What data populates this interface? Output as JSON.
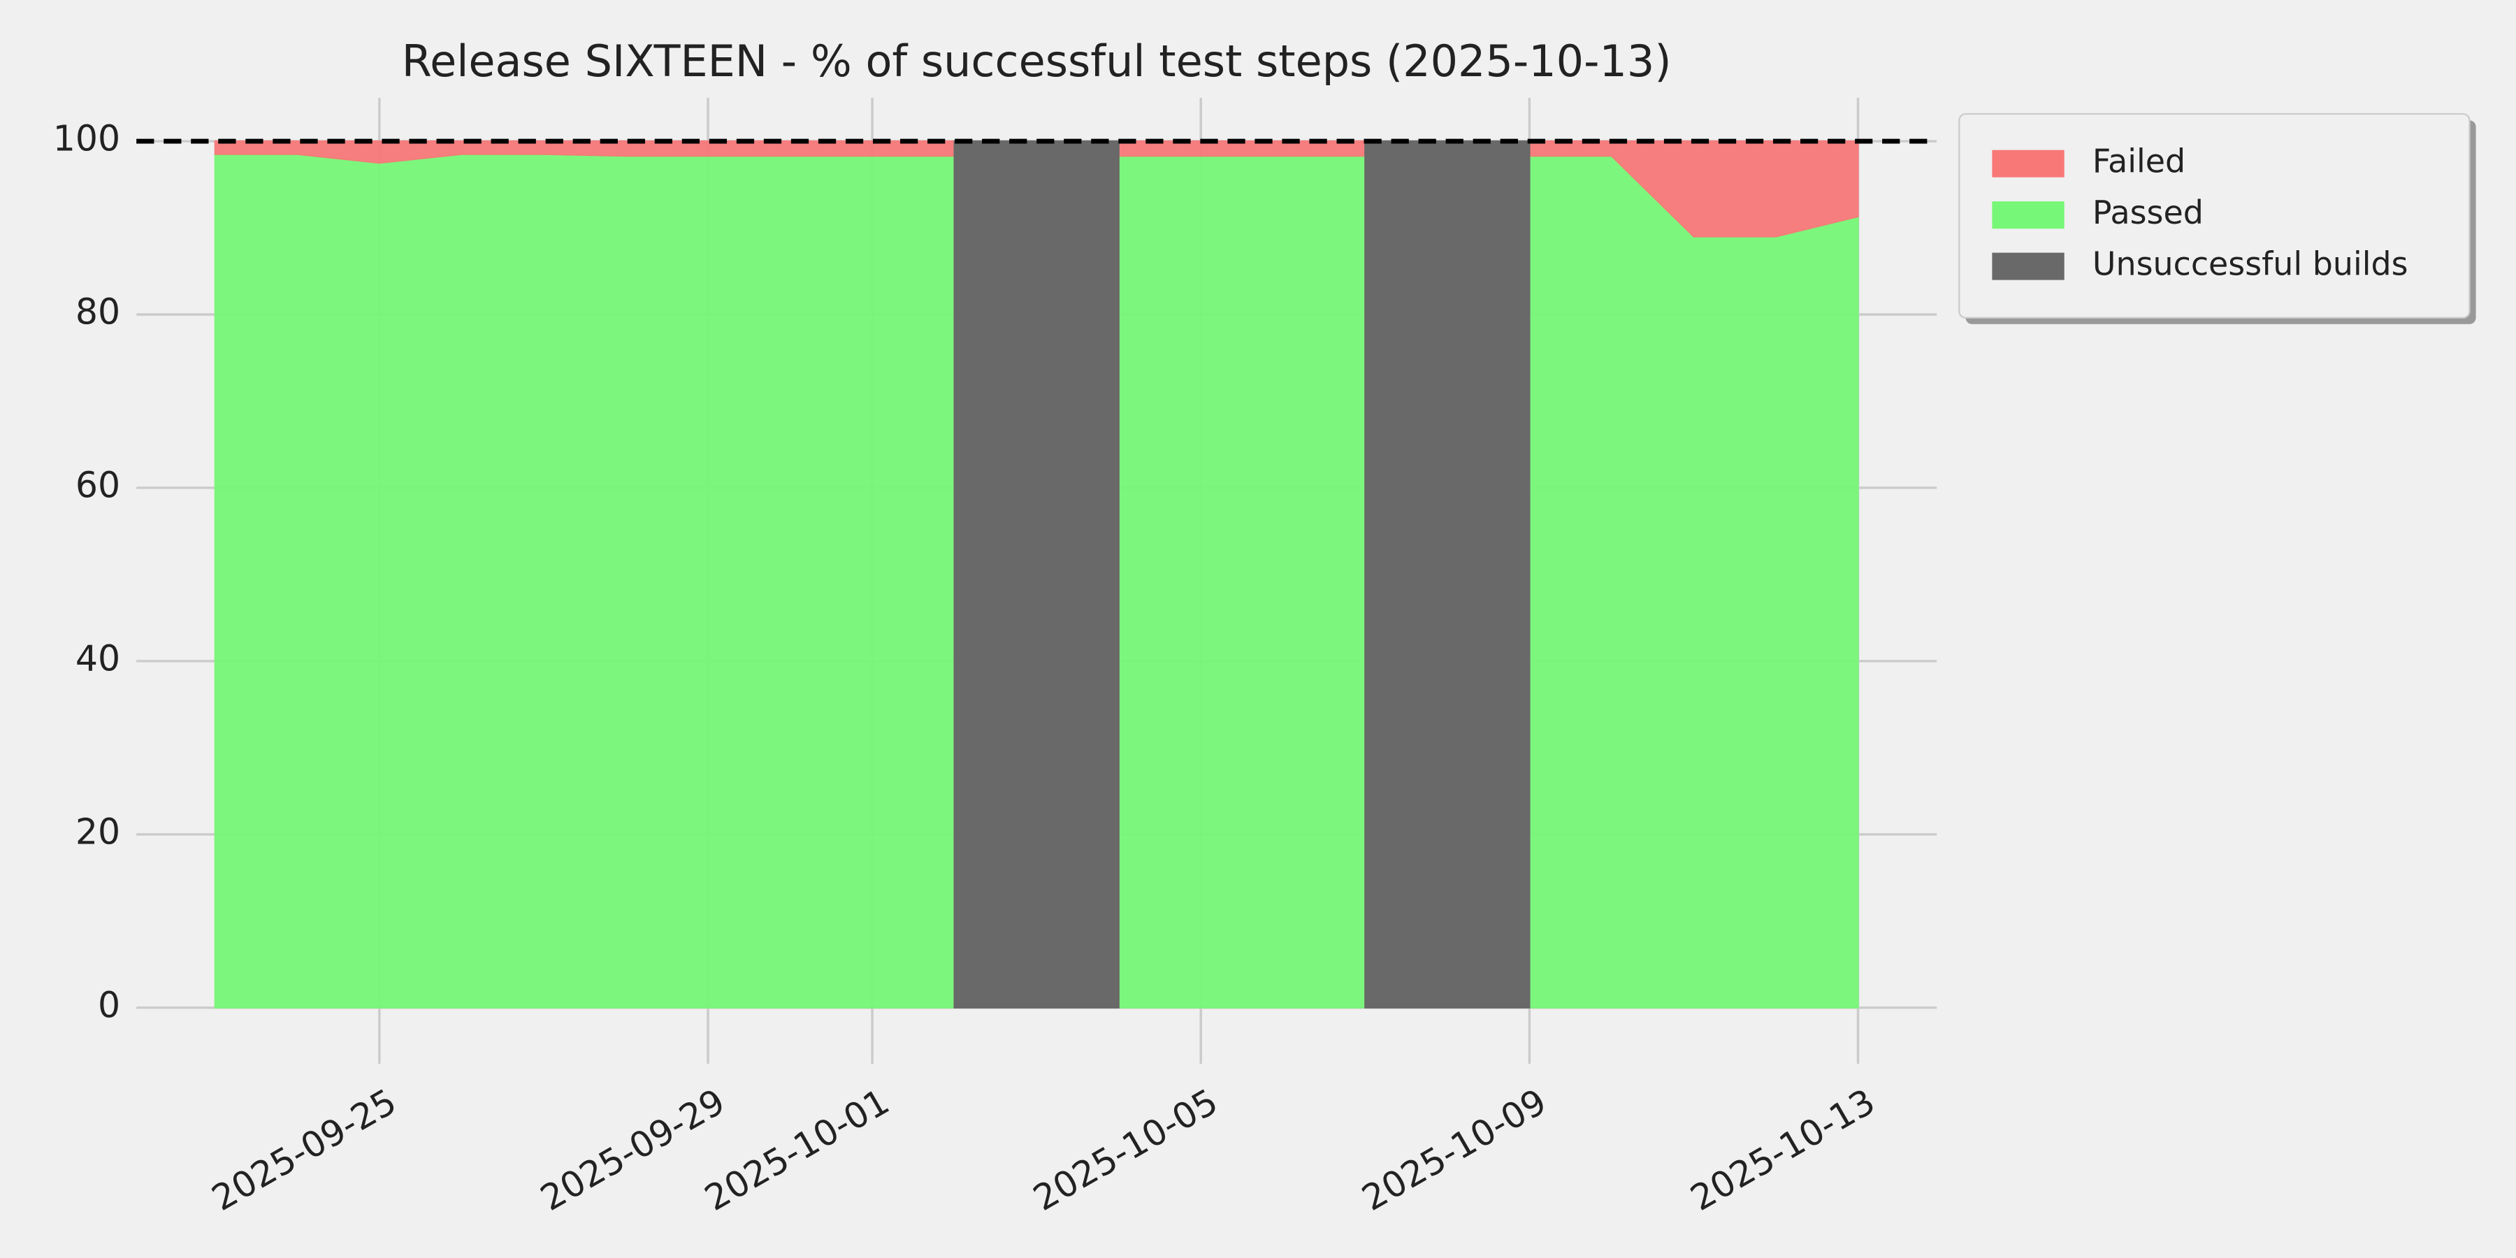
{
  "chart_data": {
    "type": "area",
    "title": "Release SIXTEEN - % of successful test steps (2025-10-13)",
    "x": [
      "2025-09-23",
      "2025-09-24",
      "2025-09-25",
      "2025-09-26",
      "2025-09-27",
      "2025-09-28",
      "2025-09-29",
      "2025-09-30",
      "2025-10-01",
      "2025-10-02",
      "2025-10-03",
      "2025-10-04",
      "2025-10-05",
      "2025-10-06",
      "2025-10-07",
      "2025-10-08",
      "2025-10-09",
      "2025-10-10",
      "2025-10-11",
      "2025-10-12",
      "2025-10-13"
    ],
    "series": [
      {
        "name": "Failed",
        "color": "#f87878",
        "stack_on": "Passed",
        "values": [
          1.5,
          1.5,
          2.5,
          1.5,
          1.5,
          1.7,
          1.7,
          1.7,
          1.7,
          1.7,
          null,
          1.7,
          1.7,
          1.7,
          1.7,
          null,
          1.7,
          1.7,
          11,
          11,
          8.7
        ]
      },
      {
        "name": "Passed",
        "color": "#77f777",
        "values": [
          98.5,
          98.5,
          97.5,
          98.5,
          98.5,
          98.3,
          98.3,
          98.3,
          98.3,
          98.3,
          null,
          98.3,
          98.3,
          98.3,
          98.3,
          null,
          98.3,
          98.3,
          89,
          89,
          91.3
        ]
      },
      {
        "name": "Unsuccessful builds",
        "color": "#696969",
        "values": [
          null,
          null,
          null,
          null,
          null,
          null,
          null,
          null,
          null,
          100,
          100,
          100,
          null,
          null,
          100,
          100,
          100,
          null,
          null,
          null,
          null
        ]
      }
    ],
    "reference_line": 100,
    "xlim": [
      "2025-09-22T01:00:00Z",
      "2025-10-13T23:00:00Z"
    ],
    "xticks": [
      "2025-09-25",
      "2025-09-29",
      "2025-10-01",
      "2025-10-05",
      "2025-10-09",
      "2025-10-13"
    ],
    "ylim": [
      -5,
      105
    ],
    "yticks": [
      0,
      20,
      40,
      60,
      80,
      100
    ],
    "grid": true,
    "legend": "outside-upper-right"
  }
}
